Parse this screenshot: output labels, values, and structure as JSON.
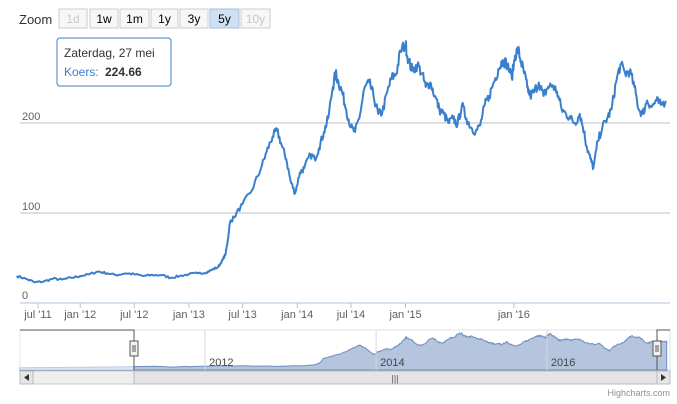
{
  "zoom": {
    "label": "Zoom",
    "buttons": [
      {
        "label": "1d",
        "state": "disabled"
      },
      {
        "label": "1w",
        "state": "normal"
      },
      {
        "label": "1m",
        "state": "normal"
      },
      {
        "label": "1y",
        "state": "normal"
      },
      {
        "label": "3y",
        "state": "normal"
      },
      {
        "label": "5y",
        "state": "active"
      },
      {
        "label": "10y",
        "state": "disabled"
      }
    ]
  },
  "tooltip": {
    "date": "Zaterdag, 27 mei",
    "series_label": "Koers:",
    "value": "224.66"
  },
  "navigator": {
    "year_labels": [
      "2012",
      "2014",
      "2016"
    ],
    "scroll_grip": "|||"
  },
  "credit": "Highcharts.com",
  "colors": {
    "line": "#3a7fcb",
    "navigator_fill": "#a7bbd7",
    "grid": "#c0c0c0",
    "tooltip_border": "#3a7fcb"
  },
  "chart_data": {
    "type": "line",
    "title": "",
    "xlabel": "",
    "ylabel": "",
    "ylim": [
      0,
      290
    ],
    "yticks": [
      0,
      100,
      200
    ],
    "grid": true,
    "legend": "none",
    "x_ticks": [
      "jul '11",
      "jan '12",
      "jul '12",
      "jan '13",
      "jul '13",
      "jan '14",
      "jul '14",
      "jan '15",
      "jan '16"
    ],
    "series": [
      {
        "name": "Koers",
        "points": [
          [
            "2011-06-01",
            30
          ],
          [
            "2011-07-01",
            27
          ],
          [
            "2011-08-01",
            23
          ],
          [
            "2011-09-01",
            24
          ],
          [
            "2011-10-01",
            27
          ],
          [
            "2011-11-01",
            26
          ],
          [
            "2011-12-01",
            28
          ],
          [
            "2012-01-01",
            30
          ],
          [
            "2012-02-01",
            32
          ],
          [
            "2012-03-01",
            35
          ],
          [
            "2012-04-01",
            33
          ],
          [
            "2012-05-01",
            31
          ],
          [
            "2012-06-01",
            33
          ],
          [
            "2012-07-01",
            32
          ],
          [
            "2012-08-01",
            30
          ],
          [
            "2012-09-01",
            31
          ],
          [
            "2012-10-01",
            31
          ],
          [
            "2012-11-01",
            28
          ],
          [
            "2012-12-01",
            30
          ],
          [
            "2013-01-01",
            32
          ],
          [
            "2013-02-01",
            33
          ],
          [
            "2013-03-01",
            34
          ],
          [
            "2013-03-20",
            37
          ],
          [
            "2013-04-10",
            40
          ],
          [
            "2013-04-25",
            48
          ],
          [
            "2013-05-05",
            55
          ],
          [
            "2013-05-12",
            70
          ],
          [
            "2013-05-20",
            90
          ],
          [
            "2013-06-01",
            95
          ],
          [
            "2013-07-01",
            110
          ],
          [
            "2013-08-01",
            125
          ],
          [
            "2013-09-01",
            150
          ],
          [
            "2013-09-20",
            168
          ],
          [
            "2013-10-10",
            185
          ],
          [
            "2013-10-25",
            192
          ],
          [
            "2013-11-10",
            175
          ],
          [
            "2013-11-25",
            160
          ],
          [
            "2013-12-10",
            135
          ],
          [
            "2013-12-25",
            122
          ],
          [
            "2014-01-10",
            145
          ],
          [
            "2014-01-25",
            150
          ],
          [
            "2014-02-15",
            165
          ],
          [
            "2014-03-01",
            160
          ],
          [
            "2014-03-15",
            172
          ],
          [
            "2014-04-01",
            190
          ],
          [
            "2014-04-15",
            205
          ],
          [
            "2014-05-01",
            240
          ],
          [
            "2014-05-10",
            255
          ],
          [
            "2014-05-20",
            245
          ],
          [
            "2014-06-01",
            235
          ],
          [
            "2014-06-15",
            215
          ],
          [
            "2014-07-01",
            195
          ],
          [
            "2014-07-15",
            190
          ],
          [
            "2014-08-01",
            210
          ],
          [
            "2014-08-15",
            238
          ],
          [
            "2014-09-01",
            245
          ],
          [
            "2014-09-15",
            230
          ],
          [
            "2014-10-01",
            210
          ],
          [
            "2014-10-15",
            212
          ],
          [
            "2014-11-01",
            235
          ],
          [
            "2014-11-15",
            250
          ],
          [
            "2014-12-01",
            255
          ],
          [
            "2014-12-15",
            280
          ],
          [
            "2015-01-01",
            288
          ],
          [
            "2015-01-10",
            270
          ],
          [
            "2015-01-25",
            258
          ],
          [
            "2015-02-10",
            265
          ],
          [
            "2015-02-25",
            255
          ],
          [
            "2015-03-10",
            240
          ],
          [
            "2015-03-25",
            245
          ],
          [
            "2015-04-10",
            230
          ],
          [
            "2015-04-25",
            215
          ],
          [
            "2015-05-10",
            210
          ],
          [
            "2015-05-25",
            200
          ],
          [
            "2015-06-10",
            205
          ],
          [
            "2015-06-25",
            198
          ],
          [
            "2015-07-10",
            220
          ],
          [
            "2015-07-25",
            205
          ],
          [
            "2015-08-10",
            195
          ],
          [
            "2015-08-25",
            190
          ],
          [
            "2015-09-10",
            198
          ],
          [
            "2015-09-25",
            220
          ],
          [
            "2015-10-10",
            230
          ],
          [
            "2015-10-25",
            245
          ],
          [
            "2015-11-10",
            260
          ],
          [
            "2015-11-25",
            270
          ],
          [
            "2015-12-10",
            265
          ],
          [
            "2015-12-25",
            250
          ],
          [
            "2016-01-05",
            275
          ],
          [
            "2016-01-15",
            282
          ],
          [
            "2016-01-25",
            268
          ],
          [
            "2016-02-05",
            255
          ],
          [
            "2016-02-15",
            240
          ],
          [
            "2016-02-25",
            230
          ],
          [
            "2016-03-10",
            235
          ],
          [
            "2016-03-25",
            245
          ],
          [
            "2016-04-10",
            230
          ],
          [
            "2016-04-25",
            240
          ],
          [
            "2016-05-10",
            242
          ],
          [
            "2016-05-25",
            235
          ],
          [
            "2016-06-10",
            215
          ],
          [
            "2016-06-25",
            210
          ],
          [
            "2016-07-10",
            205
          ],
          [
            "2016-07-25",
            200
          ],
          [
            "2016-08-10",
            210
          ],
          [
            "2016-08-25",
            190
          ],
          [
            "2016-09-01",
            175
          ],
          [
            "2016-09-15",
            160
          ],
          [
            "2016-09-25",
            150
          ],
          [
            "2016-10-10",
            180
          ],
          [
            "2016-10-25",
            195
          ],
          [
            "2016-11-10",
            205
          ],
          [
            "2016-11-25",
            215
          ],
          [
            "2016-12-10",
            245
          ],
          [
            "2016-12-25",
            265
          ],
          [
            "2017-01-10",
            255
          ],
          [
            "2017-01-25",
            258
          ],
          [
            "2017-02-10",
            240
          ],
          [
            "2017-02-25",
            215
          ],
          [
            "2017-03-10",
            210
          ],
          [
            "2017-03-25",
            225
          ],
          [
            "2017-04-10",
            218
          ],
          [
            "2017-04-25",
            225
          ],
          [
            "2017-05-10",
            220
          ],
          [
            "2017-05-27",
            224.66
          ]
        ]
      }
    ]
  }
}
